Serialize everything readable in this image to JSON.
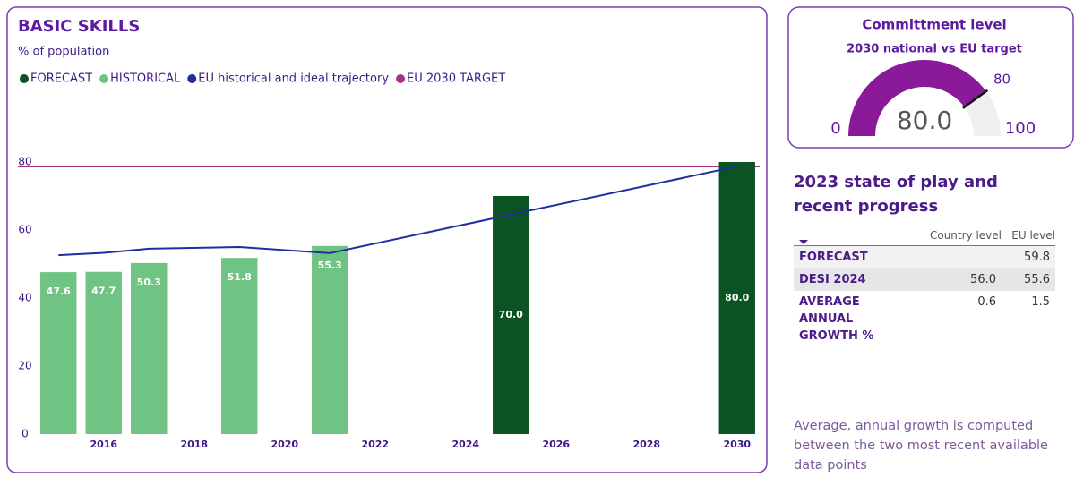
{
  "chart_data": [
    {
      "type": "bar-line",
      "title": "BASIC SKILLS",
      "subtitle": "% of population",
      "xlim": [
        2014.5,
        2030.5
      ],
      "xticks": [
        2016,
        2018,
        2020,
        2022,
        2024,
        2026,
        2028,
        2030
      ],
      "ylim": [
        0,
        100
      ],
      "yticks": [
        0,
        20,
        40,
        60,
        80
      ],
      "grid": false,
      "series": [
        {
          "name": "FORECAST",
          "type": "bar",
          "color": "#0b5323",
          "x": [
            2025,
            2030
          ],
          "values": [
            70,
            80
          ],
          "value_labels": [
            "70.0",
            "80.0"
          ]
        },
        {
          "name": "HISTORICAL",
          "type": "bar",
          "color": "#6fc383",
          "x": [
            2015,
            2016,
            2017,
            2019,
            2021
          ],
          "values": [
            47.6,
            47.7,
            50.3,
            51.8,
            55.3
          ]
        },
        {
          "name": "EU historical and ideal trajectory",
          "type": "line",
          "color": "#1f2f9e",
          "x": [
            2015,
            2016,
            2017,
            2019,
            2021,
            2030
          ],
          "values": [
            52.6,
            53.3,
            54.5,
            55.0,
            53.2,
            78.7
          ]
        },
        {
          "name": "EU 2030 TARGET",
          "type": "hline",
          "color": "#a3367f",
          "values": [
            78.7
          ]
        }
      ]
    },
    {
      "type": "gauge",
      "title": "Committment level",
      "subtitle": "2030 national vs EU target",
      "ylim": [
        0,
        100
      ],
      "value": 80,
      "value_label": "80.0",
      "target": 80,
      "color": "#8b1a9b",
      "track_color": "#efefef"
    }
  ],
  "progress": {
    "title": "2023 state of play and recent progress",
    "columns": [
      "Country level",
      "EU level"
    ],
    "rows": [
      {
        "label": "FORECAST",
        "eu_level": "59.8"
      },
      {
        "label": "DESI 2024",
        "country_level": "56.0",
        "eu_level": "55.6"
      },
      {
        "label": "AVERAGE ANNUAL GROWTH %",
        "country_level": "0.6",
        "eu_level": "1.5"
      }
    ]
  },
  "footnote": "Average, annual growth is computed between the two most recent available data points"
}
